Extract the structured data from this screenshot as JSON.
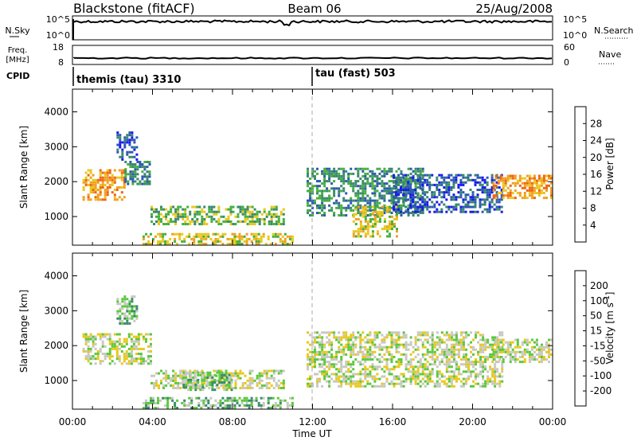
{
  "header": {
    "title": "Blackstone (fitACF)",
    "beam": "Beam 06",
    "date": "25/Aug/2008"
  },
  "chart_data": [
    {
      "type": "line",
      "panel": "noise",
      "left_label": "N.Sky",
      "right_label": "N.Search",
      "left_ticks": [
        "10^5",
        "10^0"
      ],
      "right_ticks": [
        "10^5",
        "10^0"
      ]
    },
    {
      "type": "line",
      "panel": "frequency",
      "left_label_1": "Freq.",
      "left_label_2": "[MHz]",
      "right_label": "Nave",
      "left_ticks": [
        "18",
        "8"
      ],
      "right_ticks": [
        "60",
        "0"
      ]
    },
    {
      "type": "table",
      "panel": "cpid",
      "label": "CPID",
      "entries": [
        {
          "name": "themis (tau) 3310",
          "start_hour": 0
        },
        {
          "name": "tau (fast) 503",
          "start_hour": 12
        }
      ]
    },
    {
      "type": "heatmap",
      "panel": "power",
      "ylabel": "Slant Range [km]",
      "yticks": [
        1000,
        2000,
        3000,
        4000
      ],
      "ylim": [
        180,
        4650
      ],
      "xlim": [
        0,
        24
      ],
      "colorbar_label": "Power [dB]",
      "colorbar_ticks": [
        "28",
        "24",
        "20",
        "16",
        "12",
        "8",
        "4"
      ],
      "colors": [
        "#1a1aee",
        "#2d5ab0",
        "#3a8a6a",
        "#46b03c",
        "#e8c81c",
        "#f0a020",
        "#f06414",
        "#e81c1c"
      ],
      "regions": [
        {
          "x0": 0.5,
          "x1": 2.6,
          "r0": 1450,
          "r1": 2350,
          "level": 5
        },
        {
          "x0": 2.6,
          "x1": 3.9,
          "r0": 1900,
          "r1": 2600,
          "level": 2
        },
        {
          "x0": 2.2,
          "x1": 3.2,
          "r0": 2600,
          "r1": 3400,
          "level": 1
        },
        {
          "x0": 3.9,
          "x1": 10.5,
          "r0": 750,
          "r1": 1300,
          "level": 3
        },
        {
          "x0": 3.5,
          "x1": 11.0,
          "r0": 180,
          "r1": 500,
          "level": 4
        },
        {
          "x0": 11.7,
          "x1": 17.5,
          "r0": 1000,
          "r1": 2400,
          "level": 2
        },
        {
          "x0": 14.0,
          "x1": 16.2,
          "r0": 400,
          "r1": 1300,
          "level": 4
        },
        {
          "x0": 16.0,
          "x1": 21.5,
          "r0": 1100,
          "r1": 2200,
          "level": 1
        },
        {
          "x0": 21.0,
          "x1": 24.0,
          "r0": 1500,
          "r1": 2200,
          "level": 5
        }
      ]
    },
    {
      "type": "heatmap",
      "panel": "velocity",
      "ylabel": "Slant Range [km]",
      "yticks": [
        1000,
        2000,
        3000,
        4000
      ],
      "ylim": [
        180,
        4650
      ],
      "xlim": [
        0,
        24
      ],
      "xticks": [
        "00:00",
        "04:00",
        "08:00",
        "12:00",
        "16:00",
        "20:00",
        "00:00"
      ],
      "xlabel": "Time UT",
      "colorbar_label": "Velocity [m s^-1]",
      "colorbar_ticks": [
        "200",
        "100",
        "50",
        "15",
        "-15",
        "-50",
        "-100",
        "-200"
      ],
      "colors": [
        "#e81c1c",
        "#f06414",
        "#f0a020",
        "#e8c81c",
        "#c8c8c0",
        "#5ac83c",
        "#3a8a6a",
        "#2d5ab0",
        "#1a1aee"
      ],
      "regions": [
        {
          "x0": 0.5,
          "x1": 3.9,
          "r0": 1450,
          "r1": 2350,
          "level": 4
        },
        {
          "x0": 2.2,
          "x1": 3.2,
          "r0": 2600,
          "r1": 3400,
          "level": 5
        },
        {
          "x0": 3.9,
          "x1": 10.5,
          "r0": 750,
          "r1": 1300,
          "level": 4
        },
        {
          "x0": 5.5,
          "x1": 8.0,
          "r0": 700,
          "r1": 1200,
          "level": 5
        },
        {
          "x0": 3.5,
          "x1": 11.0,
          "r0": 180,
          "r1": 500,
          "level": 5
        },
        {
          "x0": 11.7,
          "x1": 21.5,
          "r0": 800,
          "r1": 2400,
          "level": 4
        },
        {
          "x0": 21.0,
          "x1": 24.0,
          "r0": 1500,
          "r1": 2200,
          "level": 4
        }
      ]
    }
  ]
}
